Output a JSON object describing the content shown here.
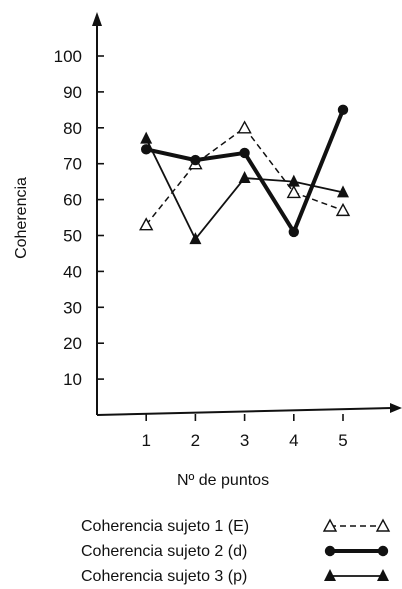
{
  "chart_data": {
    "type": "line",
    "title": "",
    "xlabel": "Nº de puntos",
    "ylabel": "Coherencia",
    "categories": [
      "1",
      "2",
      "3",
      "4",
      "5"
    ],
    "x": [
      1,
      2,
      3,
      4,
      5
    ],
    "yticks": [
      "10",
      "20",
      "30",
      "40",
      "50",
      "60",
      "70",
      "80",
      "90",
      "100"
    ],
    "ylim": [
      0,
      105
    ],
    "grid": false,
    "legend_position": "bottom",
    "series": [
      {
        "name": "Coherencia sujeto 1 (E)",
        "values": [
          53,
          70,
          80,
          62,
          57
        ],
        "line": "dashed",
        "marker": "open-triangle",
        "color": "#111111"
      },
      {
        "name": "Coherencia sujeto 2 (d)",
        "values": [
          74,
          71,
          73,
          51,
          85
        ],
        "line": "thick-solid",
        "marker": "filled-circle",
        "color": "#111111"
      },
      {
        "name": "Coherencia sujeto 3 (p)",
        "values": [
          77,
          49,
          66,
          65,
          62
        ],
        "line": "solid",
        "marker": "filled-triangle",
        "color": "#111111"
      }
    ]
  }
}
